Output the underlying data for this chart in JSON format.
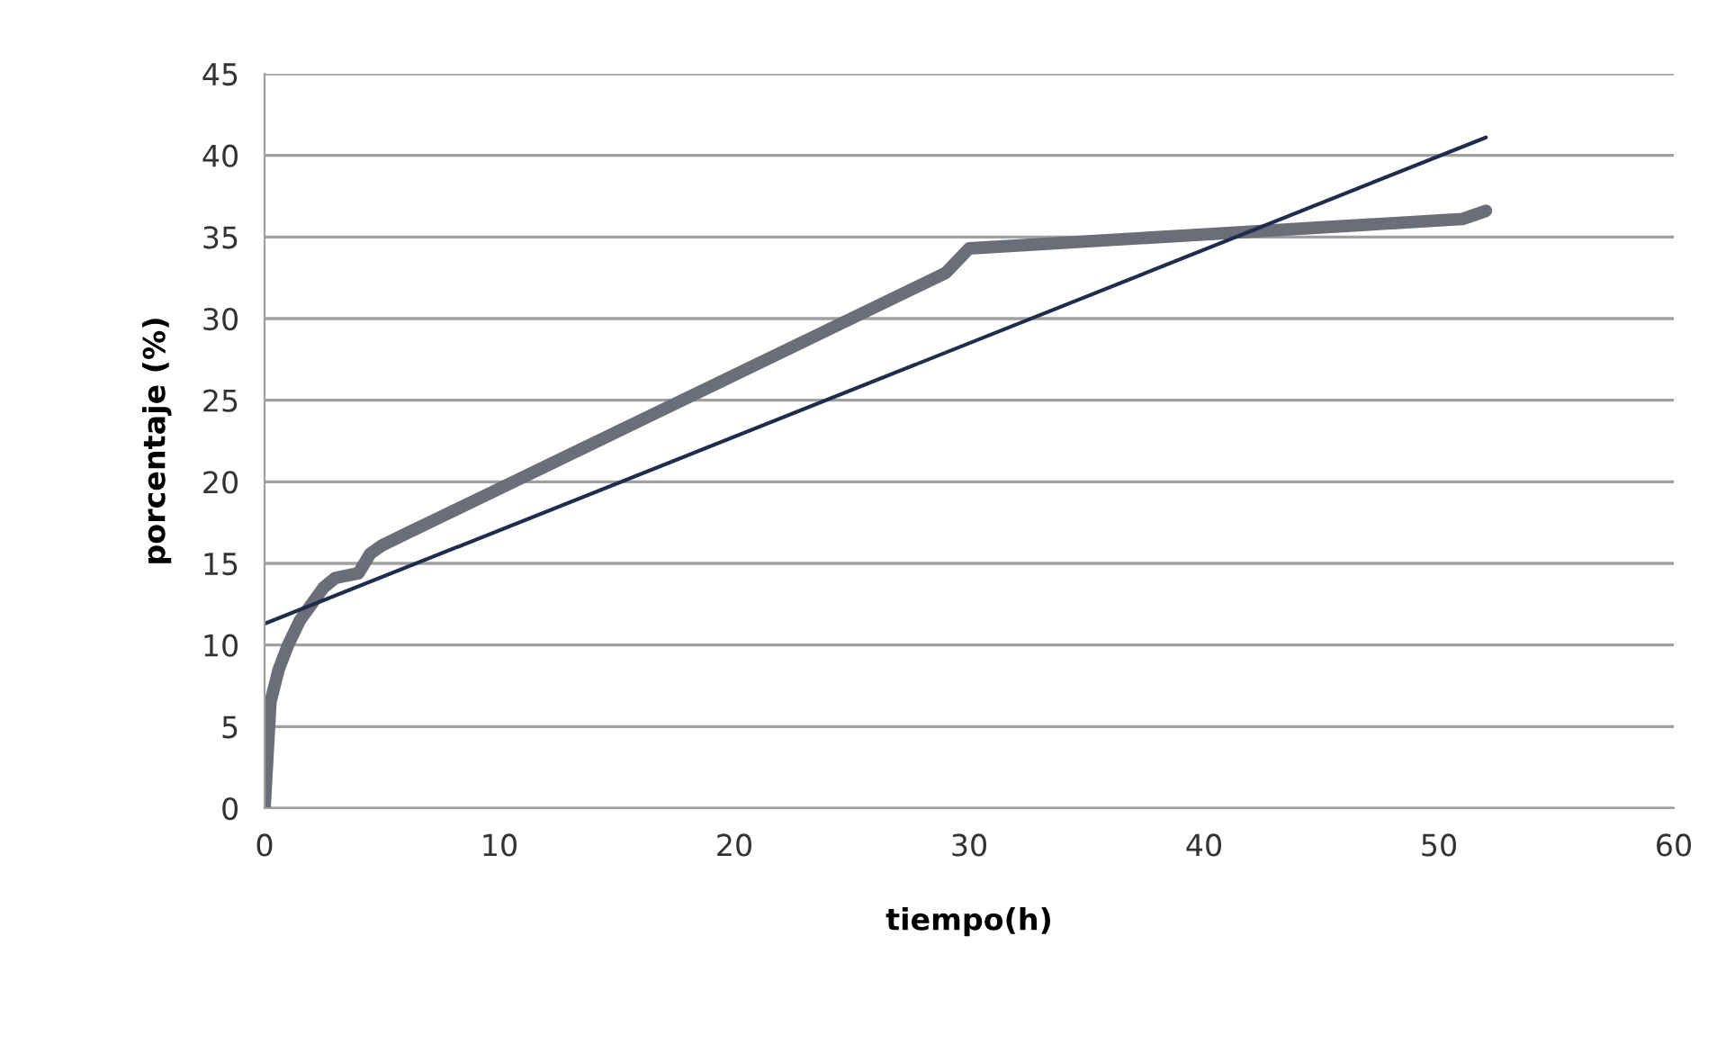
{
  "chart_data": {
    "type": "line",
    "xlabel": "tiempo(h)",
    "ylabel": "porcentaje (%)",
    "series": [
      {
        "color": "#6b6e78",
        "x": [
          0,
          0.25,
          0.6,
          1,
          1.5,
          2,
          2.5,
          3,
          4,
          4.5,
          5,
          6,
          29,
          30,
          51,
          52
        ],
        "values": [
          0,
          6.5,
          8.5,
          10,
          11.5,
          12.5,
          13.5,
          14.1,
          14.4,
          15.6,
          16.1,
          16.8,
          32.8,
          34.3,
          36.1,
          36.6
        ]
      },
      {
        "color": "#1f2d4d",
        "x": [
          0,
          52
        ],
        "values": [
          11.3,
          41.1
        ]
      }
    ],
    "xlim": [
      0,
      60
    ],
    "ylim": [
      0,
      45
    ],
    "xticks": [
      0,
      10,
      20,
      30,
      40,
      50,
      60
    ],
    "yticks": [
      0,
      5,
      10,
      15,
      20,
      25,
      30,
      35,
      40,
      45
    ],
    "grid": "y"
  }
}
